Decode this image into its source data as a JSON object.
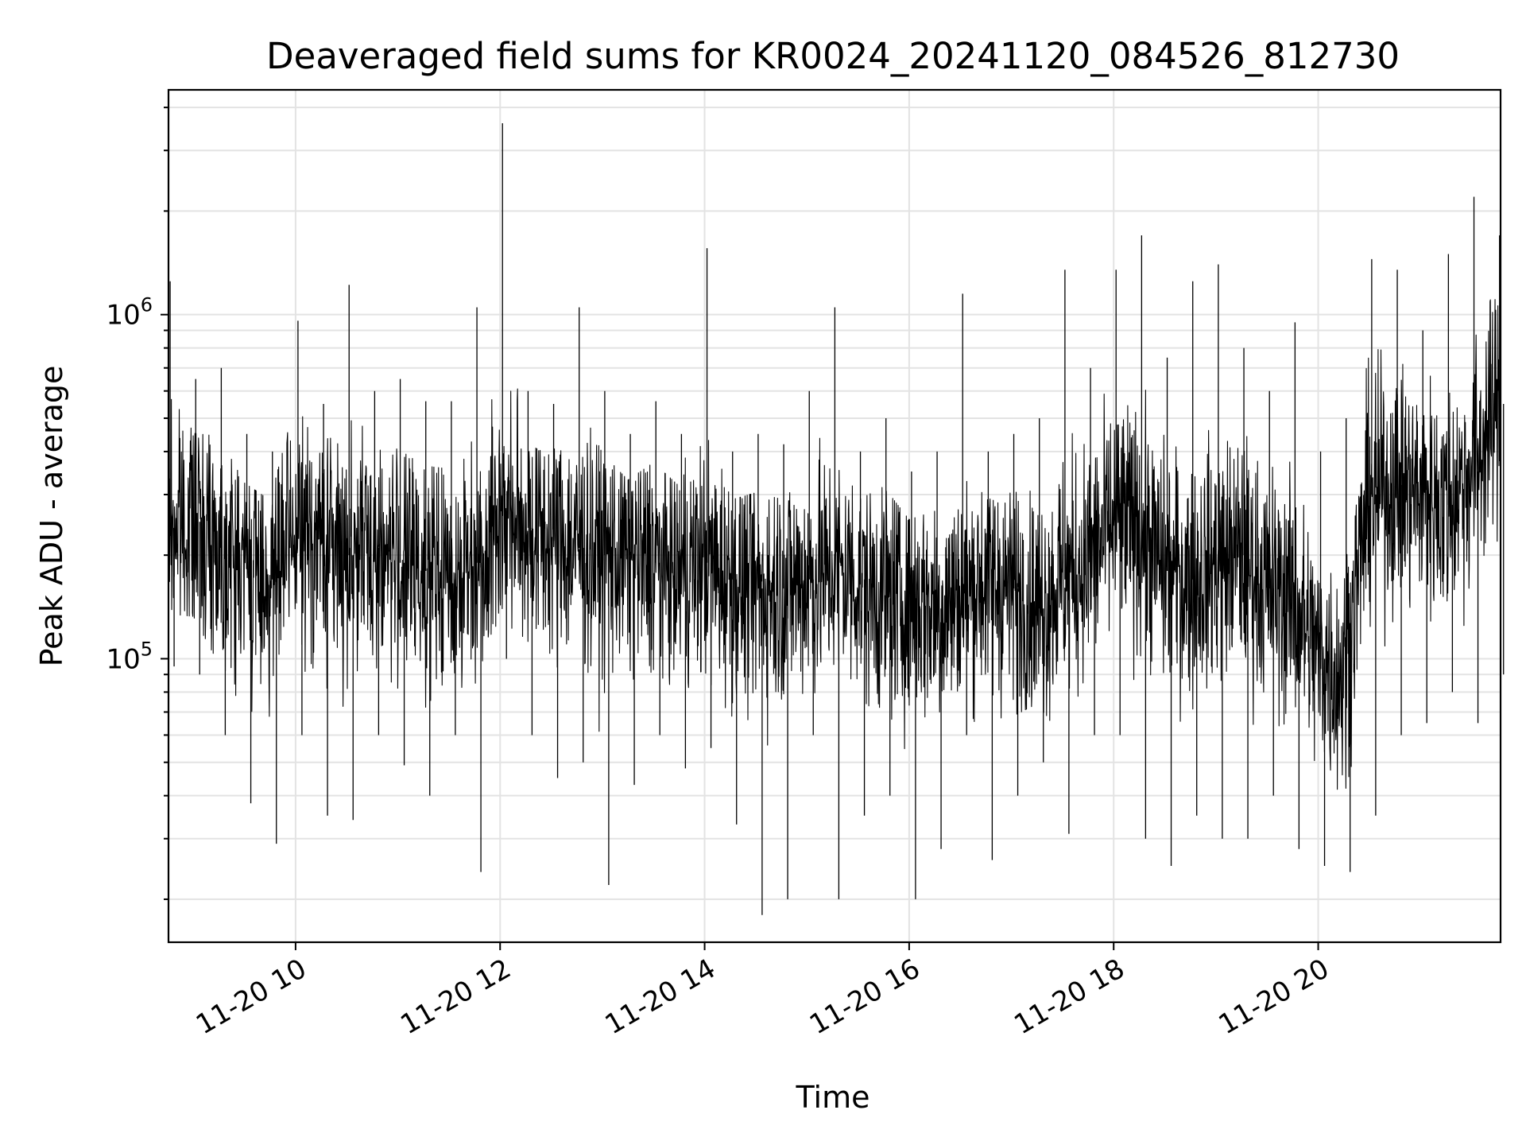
{
  "chart_data": {
    "type": "line",
    "title": "Deaveraged field sums for KR0024_20241120_084526_812730",
    "xlabel": "Time",
    "ylabel": "Peak ADU - average",
    "y_scale": "log",
    "ylim": [
      15000,
      4500000
    ],
    "y_major_ticks": [
      {
        "value": 100000,
        "base": "10",
        "exp": "5"
      },
      {
        "value": 1000000,
        "base": "10",
        "exp": "6"
      }
    ],
    "xlim": [
      "2024-11-20T08:45:26",
      "2024-11-20T21:47:00"
    ],
    "x_ticks": [
      {
        "value": "2024-11-20T10:00",
        "label": "11-20 10"
      },
      {
        "value": "2024-11-20T12:00",
        "label": "11-20 12"
      },
      {
        "value": "2024-11-20T14:00",
        "label": "11-20 14"
      },
      {
        "value": "2024-11-20T16:00",
        "label": "11-20 16"
      },
      {
        "value": "2024-11-20T18:00",
        "label": "11-20 18"
      },
      {
        "value": "2024-11-20T20:00",
        "label": "11-20 20"
      }
    ],
    "grid": true,
    "series": [
      {
        "color": "#000000",
        "x": [
          "2024-11-20T08:45",
          "2024-11-20T09:00",
          "2024-11-20T09:15",
          "2024-11-20T09:30",
          "2024-11-20T09:45",
          "2024-11-20T10:00",
          "2024-11-20T10:15",
          "2024-11-20T10:30",
          "2024-11-20T10:45",
          "2024-11-20T11:00",
          "2024-11-20T11:15",
          "2024-11-20T11:30",
          "2024-11-20T11:45",
          "2024-11-20T12:00",
          "2024-11-20T12:15",
          "2024-11-20T12:30",
          "2024-11-20T12:45",
          "2024-11-20T13:00",
          "2024-11-20T13:15",
          "2024-11-20T13:30",
          "2024-11-20T13:45",
          "2024-11-20T14:00",
          "2024-11-20T14:15",
          "2024-11-20T14:30",
          "2024-11-20T14:45",
          "2024-11-20T15:00",
          "2024-11-20T15:15",
          "2024-11-20T15:30",
          "2024-11-20T15:45",
          "2024-11-20T16:00",
          "2024-11-20T16:15",
          "2024-11-20T16:30",
          "2024-11-20T16:45",
          "2024-11-20T17:00",
          "2024-11-20T17:15",
          "2024-11-20T17:30",
          "2024-11-20T17:45",
          "2024-11-20T18:00",
          "2024-11-20T18:15",
          "2024-11-20T18:30",
          "2024-11-20T18:45",
          "2024-11-20T19:00",
          "2024-11-20T19:15",
          "2024-11-20T19:30",
          "2024-11-20T19:45",
          "2024-11-20T20:00",
          "2024-11-20T20:15",
          "2024-11-20T20:30",
          "2024-11-20T20:45",
          "2024-11-20T21:00",
          "2024-11-20T21:15",
          "2024-11-20T21:30",
          "2024-11-20T21:45"
        ],
        "y": [
          240000,
          250000,
          210000,
          190000,
          170000,
          230000,
          220000,
          200000,
          210000,
          190000,
          180000,
          170000,
          190000,
          260000,
          240000,
          220000,
          210000,
          200000,
          200000,
          190000,
          180000,
          190000,
          170000,
          160000,
          160000,
          170000,
          180000,
          170000,
          150000,
          150000,
          140000,
          150000,
          170000,
          160000,
          140000,
          170000,
          190000,
          250000,
          240000,
          180000,
          170000,
          190000,
          200000,
          160000,
          150000,
          100000,
          90000,
          300000,
          320000,
          300000,
          280000,
          350000,
          550000
        ],
        "y_high": [
          1250000,
          650000,
          700000,
          450000,
          400000,
          960000,
          550000,
          1220000,
          600000,
          650000,
          560000,
          560000,
          1050000,
          3600000,
          600000,
          550000,
          1050000,
          600000,
          450000,
          560000,
          450000,
          1560000,
          400000,
          450000,
          420000,
          600000,
          1050000,
          400000,
          500000,
          350000,
          400000,
          1150000,
          400000,
          450000,
          500000,
          1350000,
          700000,
          1350000,
          1700000,
          750000,
          1250000,
          1400000,
          800000,
          600000,
          950000,
          400000,
          500000,
          1450000,
          1350000,
          900000,
          1500000,
          2200000,
          1700000
        ],
        "y_low": [
          95000,
          90000,
          60000,
          38000,
          29000,
          60000,
          35000,
          34000,
          60000,
          49000,
          40000,
          60000,
          24000,
          100000,
          60000,
          45000,
          50000,
          22000,
          43000,
          60000,
          48000,
          55000,
          33000,
          18000,
          20000,
          60000,
          20000,
          35000,
          40000,
          20000,
          28000,
          60000,
          26000,
          40000,
          50000,
          31000,
          60000,
          60000,
          30000,
          25000,
          35000,
          30000,
          30000,
          40000,
          28000,
          25000,
          24000,
          35000,
          60000,
          65000,
          80000,
          65000,
          90000
        ]
      }
    ]
  }
}
